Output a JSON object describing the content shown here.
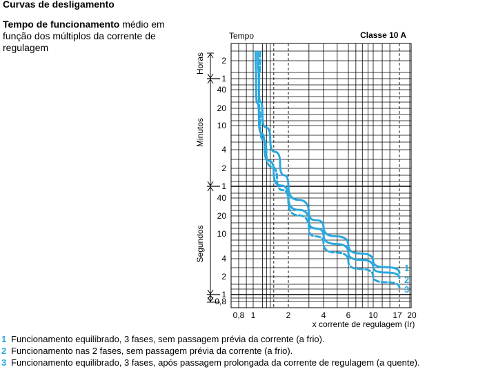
{
  "header": {
    "title": "Curvas de desligamento",
    "subtitle_bold": "Tempo de funcionamento",
    "subtitle_rest": " médio em função dos múltiplos da corrente de regulagem"
  },
  "colors": {
    "curve": "#2aa8de",
    "grid": "#000000",
    "label": "#2aa8de"
  },
  "chart_data": {
    "type": "line",
    "title": "Classe 10 A",
    "ylabel": "Tempo",
    "xlabel": "x corrente de regulagem (Ir)",
    "x_scale": "log",
    "y_scale": "log",
    "xlim": [
      0.7,
      20
    ],
    "x_ticks": [
      {
        "value": 0.8,
        "label": "0,8"
      },
      {
        "value": 1,
        "label": "1"
      },
      {
        "value": 2,
        "label": "2"
      },
      {
        "value": 4,
        "label": "4"
      },
      {
        "value": 6,
        "label": "6"
      },
      {
        "value": 10,
        "label": "10"
      },
      {
        "value": 17,
        "label": "17"
      },
      {
        "value": 20,
        "label": "20"
      }
    ],
    "y_ticks": [
      {
        "label": "2",
        "seconds": 7200
      },
      {
        "label": "1",
        "seconds": 3600
      },
      {
        "label": "40",
        "seconds": 2400
      },
      {
        "label": "20",
        "seconds": 1200
      },
      {
        "label": "10",
        "seconds": 600
      },
      {
        "label": "4",
        "seconds": 240
      },
      {
        "label": "2",
        "seconds": 120
      },
      {
        "label": "1",
        "seconds": 60
      },
      {
        "label": "40",
        "seconds": 40
      },
      {
        "label": "20",
        "seconds": 20
      },
      {
        "label": "10",
        "seconds": 10
      },
      {
        "label": "4",
        "seconds": 4
      },
      {
        "label": "2",
        "seconds": 2
      },
      {
        "label": "1",
        "seconds": 1
      },
      {
        "label": "0,8",
        "seconds": 0.8
      }
    ],
    "y_groups": [
      {
        "label": "Horas",
        "from_s": 3600,
        "to_s": 7200
      },
      {
        "label": "Minutos",
        "from_s": 60,
        "to_s": 3600
      },
      {
        "label": "Segundos",
        "from_s": 0.8,
        "to_s": 60
      }
    ],
    "series": [
      {
        "name": "1",
        "dashed": false,
        "points": [
          [
            1.1,
            8000
          ],
          [
            1.12,
            2500
          ],
          [
            1.2,
            900
          ],
          [
            1.4,
            350
          ],
          [
            1.7,
            140
          ],
          [
            2,
            60
          ],
          [
            3,
            22
          ],
          [
            4,
            13
          ],
          [
            6,
            6.5
          ],
          [
            10,
            3.6
          ],
          [
            17,
            2.3
          ]
        ]
      },
      {
        "name": "2",
        "dashed": false,
        "points": [
          [
            1.05,
            8000
          ],
          [
            1.06,
            2500
          ],
          [
            1.12,
            800
          ],
          [
            1.25,
            250
          ],
          [
            1.5,
            100
          ],
          [
            2,
            40
          ],
          [
            3,
            16
          ],
          [
            4,
            9.5
          ],
          [
            6,
            5
          ],
          [
            10,
            2.9
          ],
          [
            17,
            1.9
          ]
        ]
      },
      {
        "name": "3",
        "dashed": true,
        "points": [
          [
            1.15,
            8000
          ],
          [
            1.12,
            2000
          ],
          [
            1.15,
            600
          ],
          [
            1.3,
            200
          ],
          [
            1.6,
            80
          ],
          [
            2,
            35
          ],
          [
            3,
            12
          ],
          [
            4,
            7
          ],
          [
            6,
            3.6
          ],
          [
            10,
            2
          ],
          [
            17,
            1.3
          ]
        ]
      }
    ]
  },
  "legend": [
    {
      "num": "1",
      "text": "Funcionamento equilibrado, 3 fases, sem passagem prévia da corrente (a frio)."
    },
    {
      "num": "2",
      "text": "Funcionamento nas 2 fases, sem passagem prévia da corrente (a frio)."
    },
    {
      "num": "3",
      "text": "Funcionamento equilibrado, 3 fases, após passagem prolongada da corrente de regulagem (a quente)."
    }
  ]
}
